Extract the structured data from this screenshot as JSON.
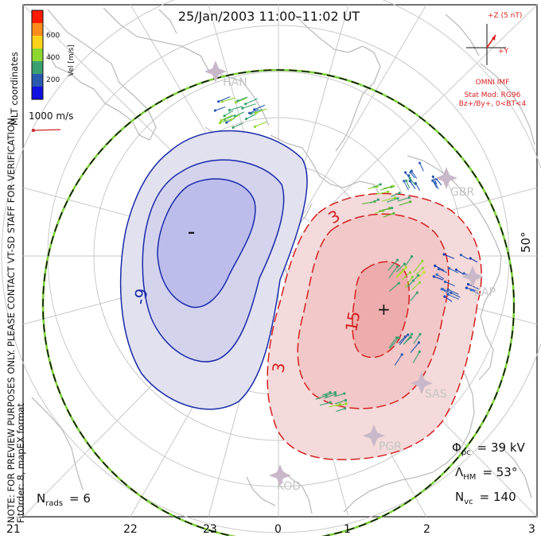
{
  "title": "25/Jan/2003 11:00–11:02 UT",
  "colorbar": {
    "label": "Vel [m/s]",
    "ticks": [
      "600",
      "400",
      "200"
    ],
    "colors": [
      "#ff1a00",
      "#ff8c1a",
      "#ffd21a",
      "#8ed630",
      "#3aa070",
      "#2a5ab0",
      "#1010e0"
    ]
  },
  "coordinates_label": "MLT coordinates",
  "reference_vector": {
    "label": "1000 m/s",
    "color": "#cc2222"
  },
  "side_notes": [
    "NOTE: FOR PREVIEW PURPOSES ONLY. PLEASE CONTACT VT-SD STAFF FOR VERIFICATION.",
    "FitOrder: 8, mapEX format"
  ],
  "imf": {
    "z_label": "+Z (5 nT)",
    "y_label": "+Y",
    "source": "OMNI IMF",
    "model_line1": "Stat Mod: RG96",
    "model_line2": "Bz+/By+, 0<BT<4",
    "color": "#dd2222"
  },
  "latitude_label": "50°",
  "stations": [
    "HAN",
    "GBR",
    "KAP",
    "SAS",
    "PGR",
    "KOD"
  ],
  "contours": {
    "negative_labels": [
      "-9"
    ],
    "positive_labels": [
      "3",
      "15",
      "3"
    ],
    "negative_color": "#1a2aa8",
    "positive_color": "#d42020",
    "min_marker": "–",
    "max_marker": "+"
  },
  "stats": {
    "phi_symbol": "Φ",
    "phi_sub": "pc",
    "phi_value": "= 39 kV",
    "lambda_symbol": "Λ",
    "lambda_sub": "HM",
    "lambda_value": "= 53°",
    "nvc_symbol": "N",
    "nvc_sub": "vc",
    "nvc_value": "= 140",
    "nrads_symbol": "N",
    "nrads_sub": "rads",
    "nrads_value": "= 6"
  },
  "mlt_axis": [
    "21",
    "22",
    "23",
    "0",
    "1",
    "2",
    "3"
  ]
}
